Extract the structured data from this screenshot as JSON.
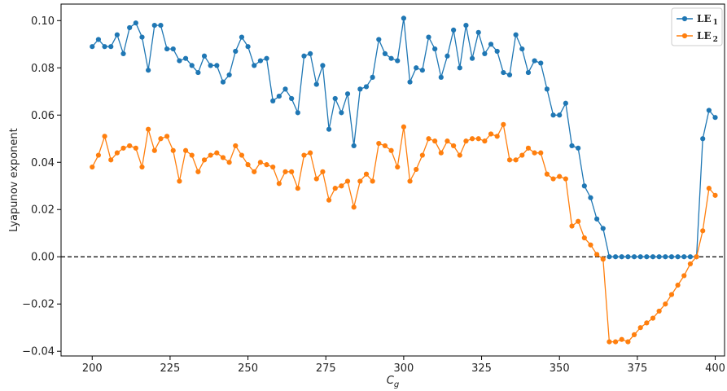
{
  "chart_data": {
    "type": "line",
    "xlabel": "C",
    "xlabel_sub": "g",
    "ylabel": "Lyapunov exponent",
    "xlim": [
      190,
      403
    ],
    "ylim": [
      -0.042,
      0.107
    ],
    "xticks": [
      200,
      225,
      250,
      275,
      300,
      325,
      350,
      375,
      400
    ],
    "yticks": [
      -0.04,
      -0.02,
      0.0,
      0.02,
      0.04,
      0.06,
      0.08,
      0.1
    ],
    "ytick_labels": [
      "−0.04",
      "−0.02",
      "0.00",
      "0.02",
      "0.04",
      "0.06",
      "0.08",
      "0.10"
    ],
    "reference_line": {
      "y": 0.0,
      "style": "dashed",
      "color": "#000000"
    },
    "legend_position": "top-right",
    "grid": false,
    "x": [
      200,
      202,
      204,
      206,
      208,
      210,
      212,
      214,
      216,
      218,
      220,
      222,
      224,
      226,
      228,
      230,
      232,
      234,
      236,
      238,
      240,
      242,
      244,
      246,
      248,
      250,
      252,
      254,
      256,
      258,
      260,
      262,
      264,
      266,
      268,
      270,
      272,
      274,
      276,
      278,
      280,
      282,
      284,
      286,
      288,
      290,
      292,
      294,
      296,
      298,
      300,
      302,
      304,
      306,
      308,
      310,
      312,
      314,
      316,
      318,
      320,
      322,
      324,
      326,
      328,
      330,
      332,
      334,
      336,
      338,
      340,
      342,
      344,
      346,
      348,
      350,
      352,
      354,
      356,
      358,
      360,
      362,
      364,
      366,
      368,
      370,
      372,
      374,
      376,
      378,
      380,
      382,
      384,
      386,
      388,
      390,
      392,
      394,
      396,
      398,
      400
    ],
    "series": [
      {
        "name": "LE",
        "name_sub": "1",
        "color": "#1f77b4",
        "values": [
          0.089,
          0.092,
          0.089,
          0.089,
          0.094,
          0.086,
          0.097,
          0.099,
          0.093,
          0.079,
          0.098,
          0.098,
          0.088,
          0.088,
          0.083,
          0.084,
          0.081,
          0.078,
          0.085,
          0.081,
          0.081,
          0.074,
          0.077,
          0.087,
          0.093,
          0.089,
          0.081,
          0.083,
          0.084,
          0.066,
          0.068,
          0.071,
          0.067,
          0.061,
          0.085,
          0.086,
          0.073,
          0.081,
          0.054,
          0.067,
          0.061,
          0.069,
          0.047,
          0.071,
          0.072,
          0.076,
          0.092,
          0.086,
          0.084,
          0.083,
          0.101,
          0.074,
          0.08,
          0.079,
          0.093,
          0.088,
          0.076,
          0.085,
          0.096,
          0.08,
          0.098,
          0.084,
          0.095,
          0.086,
          0.09,
          0.087,
          0.078,
          0.077,
          0.094,
          0.088,
          0.078,
          0.083,
          0.082,
          0.071,
          0.06,
          0.06,
          0.065,
          0.047,
          0.046,
          0.03,
          0.025,
          0.016,
          0.012,
          0.0,
          0.0,
          0.0,
          0.0,
          0.0,
          0.0,
          0.0,
          0.0,
          0.0,
          0.0,
          0.0,
          0.0,
          0.0,
          0.0,
          0.0,
          0.05,
          0.062,
          0.059
        ]
      },
      {
        "name": "LE",
        "name_sub": "2",
        "color": "#ff7f0e",
        "values": [
          0.038,
          0.043,
          0.051,
          0.041,
          0.044,
          0.046,
          0.047,
          0.046,
          0.038,
          0.054,
          0.045,
          0.05,
          0.051,
          0.045,
          0.032,
          0.045,
          0.043,
          0.036,
          0.041,
          0.043,
          0.044,
          0.042,
          0.04,
          0.047,
          0.043,
          0.039,
          0.036,
          0.04,
          0.039,
          0.038,
          0.031,
          0.036,
          0.036,
          0.029,
          0.043,
          0.044,
          0.033,
          0.036,
          0.024,
          0.029,
          0.03,
          0.032,
          0.021,
          0.032,
          0.035,
          0.032,
          0.048,
          0.047,
          0.045,
          0.038,
          0.055,
          0.032,
          0.037,
          0.043,
          0.05,
          0.049,
          0.044,
          0.049,
          0.047,
          0.043,
          0.049,
          0.05,
          0.05,
          0.049,
          0.052,
          0.051,
          0.056,
          0.041,
          0.041,
          0.043,
          0.046,
          0.044,
          0.044,
          0.035,
          0.033,
          0.034,
          0.033,
          0.013,
          0.015,
          0.008,
          0.005,
          0.001,
          -0.001,
          -0.036,
          -0.036,
          -0.035,
          -0.036,
          -0.033,
          -0.03,
          -0.028,
          -0.026,
          -0.023,
          -0.02,
          -0.016,
          -0.012,
          -0.008,
          -0.003,
          0.0,
          0.011,
          0.029,
          0.026
        ]
      }
    ]
  }
}
